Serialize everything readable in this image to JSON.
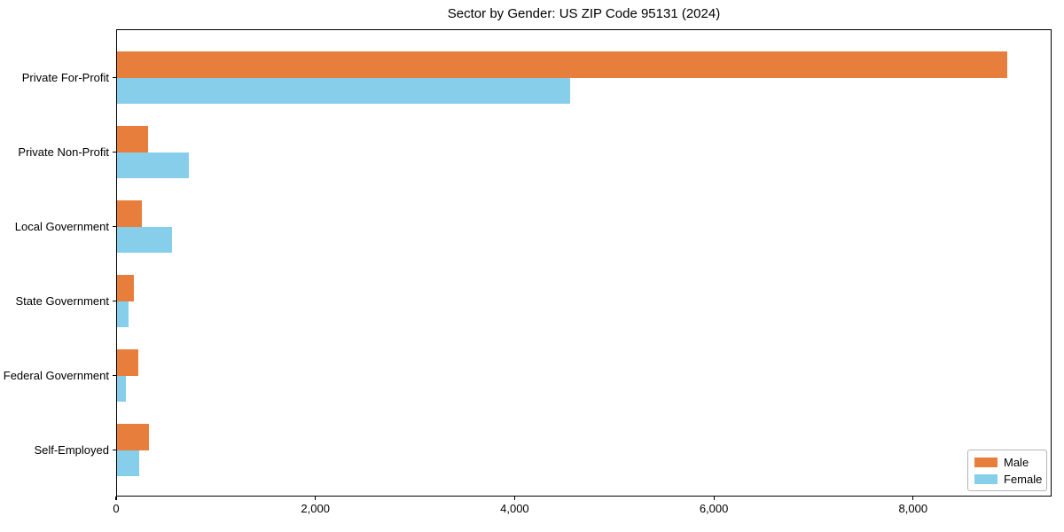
{
  "title": "Sector by Gender: US ZIP Code 95131 (2024)",
  "chart_data": {
    "type": "bar",
    "orientation": "horizontal",
    "title": "Sector by Gender: US ZIP Code 95131 (2024)",
    "categories": [
      "Private For-Profit",
      "Private Non-Profit",
      "Local Government",
      "State Government",
      "Federal Government",
      "Self-Employed"
    ],
    "series": [
      {
        "name": "Male",
        "color": "#e87e3b",
        "values": [
          8940,
          310,
          250,
          170,
          215,
          320
        ]
      },
      {
        "name": "Female",
        "color": "#87ceeb",
        "values": [
          4550,
          725,
          555,
          115,
          90,
          225
        ]
      }
    ],
    "xlabel": "",
    "ylabel": "",
    "xlim": [
      0,
      9390
    ],
    "xticks": [
      0,
      2000,
      4000,
      6000,
      8000
    ],
    "xtick_labels": [
      "0",
      "2,000",
      "4,000",
      "6,000",
      "8,000"
    ],
    "grid": false,
    "legend": {
      "position": "lower right"
    }
  }
}
